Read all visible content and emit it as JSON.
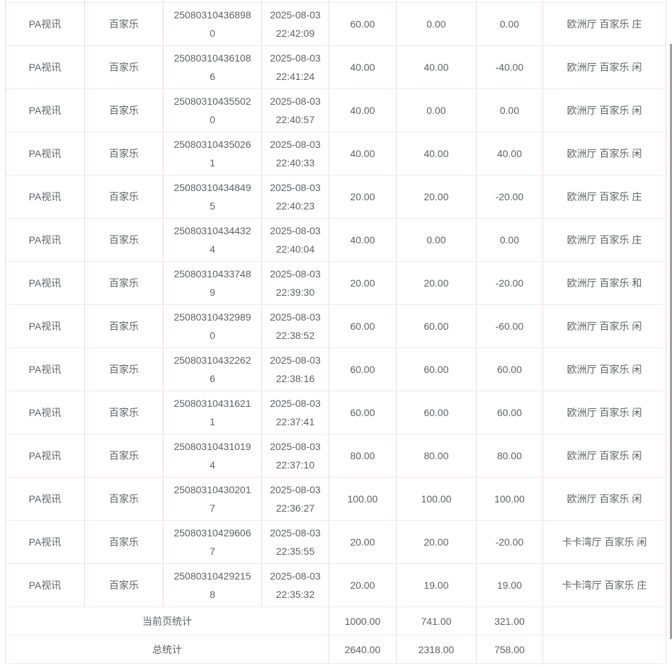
{
  "table": {
    "rows": [
      {
        "platform": "PA视讯",
        "game": "百家乐",
        "order_no": "250803104368980",
        "time": "2025-08-03 22:42:09",
        "bet": "60.00",
        "valid": "0.00",
        "win_loss": "0.00",
        "detail": "欧洲厅 百家乐 庄"
      },
      {
        "platform": "PA视讯",
        "game": "百家乐",
        "order_no": "250803104361086",
        "time": "2025-08-03 22:41:24",
        "bet": "40.00",
        "valid": "40.00",
        "win_loss": "-40.00",
        "detail": "欧洲厅 百家乐 闲"
      },
      {
        "platform": "PA视讯",
        "game": "百家乐",
        "order_no": "250803104355020",
        "time": "2025-08-03 22:40:57",
        "bet": "40.00",
        "valid": "0.00",
        "win_loss": "0.00",
        "detail": "欧洲厅 百家乐 闲"
      },
      {
        "platform": "PA视讯",
        "game": "百家乐",
        "order_no": "250803104350261",
        "time": "2025-08-03 22:40:33",
        "bet": "40.00",
        "valid": "40.00",
        "win_loss": "40.00",
        "detail": "欧洲厅 百家乐 闲"
      },
      {
        "platform": "PA视讯",
        "game": "百家乐",
        "order_no": "250803104348495",
        "time": "2025-08-03 22:40:23",
        "bet": "20.00",
        "valid": "20.00",
        "win_loss": "-20.00",
        "detail": "欧洲厅 百家乐 庄"
      },
      {
        "platform": "PA视讯",
        "game": "百家乐",
        "order_no": "250803104344324",
        "time": "2025-08-03 22:40:04",
        "bet": "40.00",
        "valid": "0.00",
        "win_loss": "0.00",
        "detail": "欧洲厅 百家乐 庄"
      },
      {
        "platform": "PA视讯",
        "game": "百家乐",
        "order_no": "250803104337489",
        "time": "2025-08-03 22:39:30",
        "bet": "20.00",
        "valid": "20.00",
        "win_loss": "-20.00",
        "detail": "欧洲厅 百家乐 和"
      },
      {
        "platform": "PA视讯",
        "game": "百家乐",
        "order_no": "250803104329890",
        "time": "2025-08-03 22:38:52",
        "bet": "60.00",
        "valid": "60.00",
        "win_loss": "-60.00",
        "detail": "欧洲厅 百家乐 闲"
      },
      {
        "platform": "PA视讯",
        "game": "百家乐",
        "order_no": "250803104322626",
        "time": "2025-08-03 22:38:16",
        "bet": "60.00",
        "valid": "60.00",
        "win_loss": "60.00",
        "detail": "欧洲厅 百家乐 闲"
      },
      {
        "platform": "PA视讯",
        "game": "百家乐",
        "order_no": "250803104316211",
        "time": "2025-08-03 22:37:41",
        "bet": "60.00",
        "valid": "60.00",
        "win_loss": "60.00",
        "detail": "欧洲厅 百家乐 闲"
      },
      {
        "platform": "PA视讯",
        "game": "百家乐",
        "order_no": "250803104310194",
        "time": "2025-08-03 22:37:10",
        "bet": "80.00",
        "valid": "80.00",
        "win_loss": "80.00",
        "detail": "欧洲厅 百家乐 闲"
      },
      {
        "platform": "PA视讯",
        "game": "百家乐",
        "order_no": "250803104302017",
        "time": "2025-08-03 22:36:27",
        "bet": "100.00",
        "valid": "100.00",
        "win_loss": "100.00",
        "detail": "欧洲厅 百家乐 闲"
      },
      {
        "platform": "PA视讯",
        "game": "百家乐",
        "order_no": "250803104296067",
        "time": "2025-08-03 22:35:55",
        "bet": "20.00",
        "valid": "20.00",
        "win_loss": "-20.00",
        "detail": "卡卡湾厅 百家乐 闲"
      },
      {
        "platform": "PA视讯",
        "game": "百家乐",
        "order_no": "250803104292158",
        "time": "2025-08-03 22:35:32",
        "bet": "20.00",
        "valid": "19.00",
        "win_loss": "19.00",
        "detail": "卡卡湾厅 百家乐 庄"
      }
    ],
    "summary": {
      "current_page": {
        "label": "当前页统计",
        "bet": "1000.00",
        "valid": "741.00",
        "win_loss": "321.00",
        "detail": ""
      },
      "total": {
        "label": "总统计",
        "bet": "2640.00",
        "valid": "2318.00",
        "win_loss": "758.00",
        "detail": ""
      }
    }
  },
  "colors": {
    "border_vertical": "#eedadd",
    "border_horizontal": "#f2e9ea",
    "text": "#5f6163",
    "row_background": "#ffffff",
    "scrollbar_thumb": "#a0a0a0"
  }
}
